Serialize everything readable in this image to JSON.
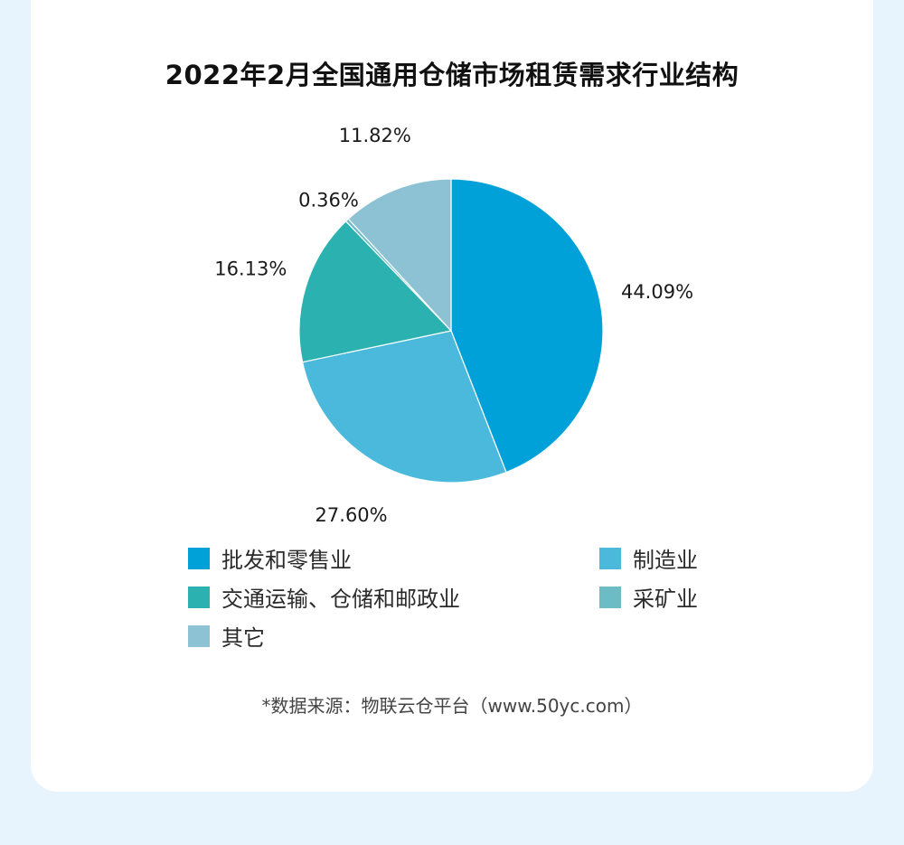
{
  "title": "2022年2月全国通用仓储市场租赁需求行业结构",
  "source": "*数据来源：物联云仓平台（www.50yc.com）",
  "chart_data": {
    "type": "pie",
    "title": "2022年2月全国通用仓储市场租赁需求行业结构",
    "slices": [
      {
        "name": "批发和零售业",
        "value": 44.09,
        "label": "44.09%",
        "color": "#00a0d9"
      },
      {
        "name": "制造业",
        "value": 27.6,
        "label": "27.60%",
        "color": "#4bb9dc"
      },
      {
        "name": "交通运输、仓储和邮政业",
        "value": 16.13,
        "label": "16.13%",
        "color": "#2ab1b0"
      },
      {
        "name": "采矿业",
        "value": 0.36,
        "label": "0.36%",
        "color": "#6cbcc6"
      },
      {
        "name": "其它",
        "value": 11.82,
        "label": "11.82%",
        "color": "#8cc2d4"
      }
    ],
    "legend_position": "bottom"
  }
}
